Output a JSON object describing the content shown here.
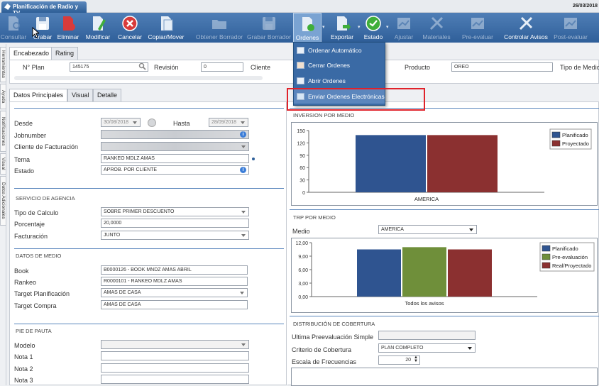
{
  "window": {
    "title": "Planificación de Radio y TV",
    "date": "26/03/2018"
  },
  "toolbar": {
    "buttons": [
      {
        "label": "Consultar",
        "icon": "search-document-icon",
        "color": "#e6eef7"
      },
      {
        "label": "Grabar",
        "icon": "save-icon",
        "color": "#e6eef7"
      },
      {
        "label": "Eliminar",
        "icon": "delete-document-icon",
        "color": "#d83b3b"
      },
      {
        "label": "Modificar",
        "icon": "edit-document-icon",
        "color": "#e6eef7"
      },
      {
        "label": "Cancelar",
        "icon": "cancel-icon",
        "color": "#d83b3b"
      },
      {
        "label": "Copiar/Mover",
        "icon": "copy-icon",
        "color": "#e6eef7"
      },
      {
        "label": "Obtener Borrador",
        "icon": "folder-icon",
        "color": "#e6eef7"
      },
      {
        "label": "Grabar Borrador",
        "icon": "save-draft-icon",
        "color": "#e6eef7"
      },
      {
        "label": "Ordenes",
        "icon": "orders-icon",
        "color": "#e6eef7"
      },
      {
        "label": "Exportar",
        "icon": "export-icon",
        "color": "#e6eef7"
      },
      {
        "label": "Estado",
        "icon": "status-icon",
        "color": "#3fae3a"
      },
      {
        "label": "Ajustar",
        "icon": "adjust-icon",
        "color": "#e6eef7"
      },
      {
        "label": "Materiales",
        "icon": "tools-icon",
        "color": "#e6eef7"
      },
      {
        "label": "Pre-evaluar",
        "icon": "pre-evaluate-icon",
        "color": "#e6eef7"
      },
      {
        "label": "Controlar Avisos",
        "icon": "control-tools-icon",
        "color": "#e6eef7"
      },
      {
        "label": "Post-evaluar",
        "icon": "post-evaluate-icon",
        "color": "#e6eef7"
      }
    ]
  },
  "ordenes_menu": {
    "items": [
      "Ordenar Automático",
      "Cerrar Ordenes",
      "Abrir Ordenes",
      "Enviar Ordenes Electrónicas"
    ]
  },
  "side_tabs": [
    "Herramientas",
    "Ayuda",
    "Notificaciones",
    "Visual",
    "Datos Adicionales"
  ],
  "header_tabs": [
    "Encabezado",
    "Rating"
  ],
  "header": {
    "plan_label": "N° Plan",
    "plan_value": "145175",
    "revision_label": "Revisión",
    "revision_value": "0",
    "cliente_label": "Cliente",
    "producto_label": "Producto",
    "producto_value": "OREO",
    "tipo_medio_label": "Tipo de Medio"
  },
  "main_tabs": [
    "Datos Principales",
    "Visual",
    "Detalle"
  ],
  "datos": {
    "desde_label": "Desde",
    "desde_value": "30/08/2018",
    "hasta_label": "Hasta",
    "hasta_value": "28/09/2018",
    "jobnumber_label": "Jobnumber",
    "cliente_fact_label": "Cliente de Facturación",
    "tema_label": "Tema",
    "tema_value": "RANKEO MDLZ AMAS",
    "estado_label": "Estado",
    "estado_value": "APROB. POR CLIENTE"
  },
  "servicio": {
    "title": "SERVICIO DE AGENCIA",
    "tipo_label": "Tipo de Calculo",
    "tipo_value": "SOBRE PRIMER DESCUENTO",
    "porcentaje_label": "Porcentaje",
    "porcentaje_value": "20,0000",
    "facturacion_label": "Facturación",
    "facturacion_value": "JUNTO"
  },
  "medio": {
    "title": "DATOS DE MEDIO",
    "book_label": "Book",
    "book_value": "B0000126 - BOOK MNDZ AMAS ABRIL",
    "rankeo_label": "Rankeo",
    "rankeo_value": "R0000101 - RANKEO MDLZ AMAS",
    "target_plan_label": "Target Planificación",
    "target_plan_value": "AMAS DE CASA",
    "target_compra_label": "Target Compra",
    "target_compra_value": "AMAS DE CASA"
  },
  "pie": {
    "title": "PIE DE PAUTA",
    "modelo_label": "Modelo",
    "nota1_label": "Nota 1",
    "nota2_label": "Nota 2",
    "nota3_label": "Nota 3"
  },
  "inversion": {
    "title": "INVERSION POR MEDIO"
  },
  "trp": {
    "title": "TRP POR MEDIO",
    "medio_label": "Medio",
    "medio_value": "AMERICA"
  },
  "cobertura": {
    "title": "DISTRIBUCIÓN DE COBERTURA",
    "ultima_label": "Ultima Preevaluación Simple",
    "criterio_label": "Criterio de Cobertura",
    "criterio_value": "PLAN COMPLETO",
    "escala_label": "Escala de Frecuencias",
    "escala_value": "20"
  },
  "chart_data": [
    {
      "type": "bar",
      "categories": [
        "AMERICA"
      ],
      "series": [
        {
          "name": "Planificado",
          "values": [
            139
          ],
          "color": "#2f5490"
        },
        {
          "name": "Proyectado",
          "values": [
            139
          ],
          "color": "#8b3030"
        }
      ],
      "ylim": [
        0,
        150
      ],
      "yticks": [
        "150",
        "120",
        "90",
        "60",
        "30",
        "0"
      ],
      "grid": false,
      "legend": "top-right"
    },
    {
      "type": "bar",
      "categories": [
        "Todos los avisos"
      ],
      "series": [
        {
          "name": "Planificado",
          "values": [
            10.5
          ],
          "color": "#2f5490"
        },
        {
          "name": "Pre-evaluación",
          "values": [
            11.0
          ],
          "color": "#6f8f3a"
        },
        {
          "name": "Real/Proyectado",
          "values": [
            10.5
          ],
          "color": "#8b3030"
        }
      ],
      "ylim": [
        0,
        12
      ],
      "yticks": [
        "12,00",
        "9,00",
        "6,00",
        "3,00",
        "0,00"
      ],
      "grid": false,
      "legend": "top-right"
    }
  ]
}
